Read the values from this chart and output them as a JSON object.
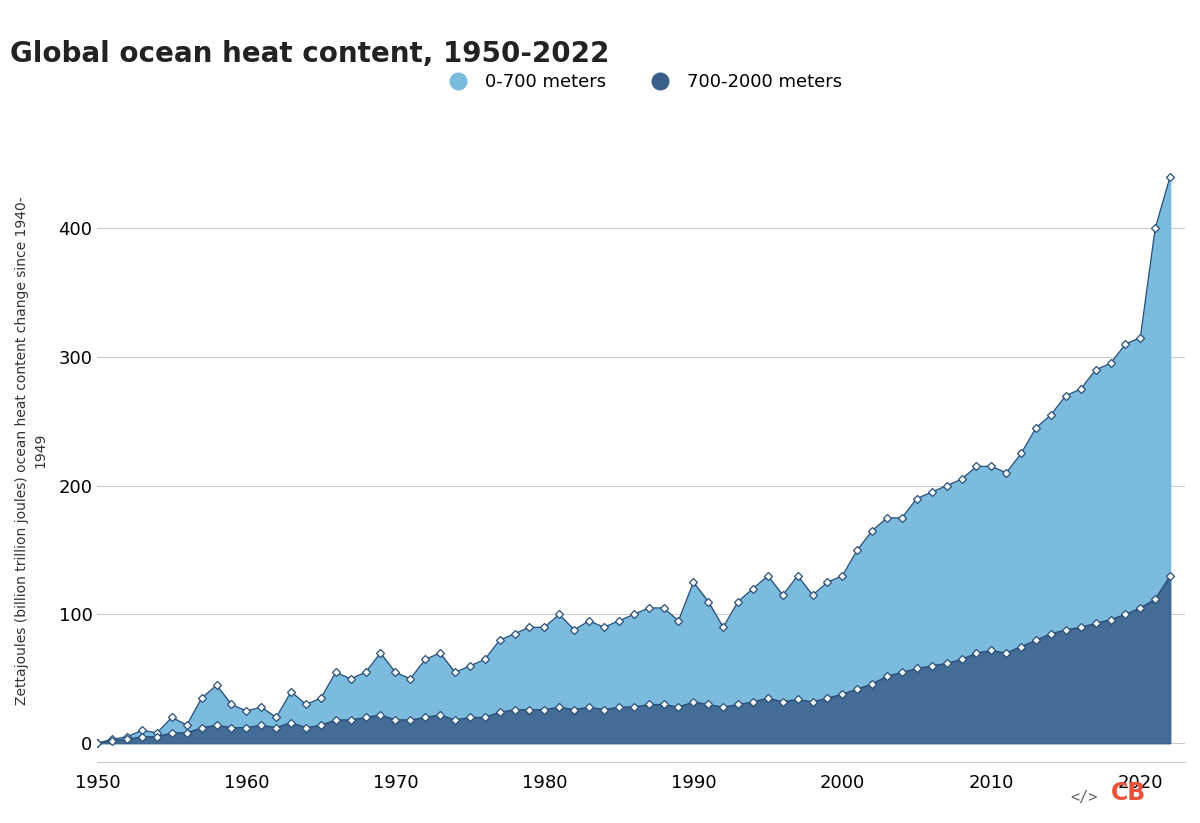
{
  "title": "Global ocean heat content, 1950-2022",
  "ylabel_line1": "Zettajoules (billion trillion joules) ocean heat content change since 1940-",
  "ylabel_line2": "1949",
  "background_color": "#ffffff",
  "grid_color": "#cccccc",
  "legend_entries": [
    "0-700 meters",
    "700-2000 meters"
  ],
  "color_shallow": "#7bbcde",
  "color_deep": "#3a5f8a",
  "years": [
    1950,
    1951,
    1952,
    1953,
    1954,
    1955,
    1956,
    1957,
    1958,
    1959,
    1960,
    1961,
    1962,
    1963,
    1964,
    1965,
    1966,
    1967,
    1968,
    1969,
    1970,
    1971,
    1972,
    1973,
    1974,
    1975,
    1976,
    1977,
    1978,
    1979,
    1980,
    1981,
    1982,
    1983,
    1984,
    1985,
    1986,
    1987,
    1988,
    1989,
    1990,
    1991,
    1992,
    1993,
    1994,
    1995,
    1996,
    1997,
    1998,
    1999,
    2000,
    2001,
    2002,
    2003,
    2004,
    2005,
    2006,
    2007,
    2008,
    2009,
    2010,
    2011,
    2012,
    2013,
    2014,
    2015,
    2016,
    2017,
    2018,
    2019,
    2020,
    2021,
    2022
  ],
  "shallow": [
    0,
    3,
    5,
    10,
    8,
    20,
    14,
    35,
    45,
    30,
    25,
    28,
    20,
    40,
    30,
    35,
    55,
    50,
    55,
    70,
    55,
    50,
    65,
    70,
    55,
    60,
    65,
    80,
    85,
    90,
    90,
    100,
    88,
    95,
    90,
    95,
    100,
    105,
    105,
    95,
    125,
    110,
    90,
    110,
    120,
    130,
    115,
    130,
    115,
    125,
    130,
    150,
    165,
    175,
    175,
    190,
    195,
    200,
    205,
    215,
    215,
    210,
    225,
    245,
    255,
    270,
    275,
    290,
    295,
    310,
    315,
    400,
    440
  ],
  "deep": [
    0,
    2,
    3,
    5,
    5,
    8,
    8,
    12,
    14,
    12,
    12,
    14,
    12,
    16,
    12,
    14,
    18,
    18,
    20,
    22,
    18,
    18,
    20,
    22,
    18,
    20,
    20,
    24,
    26,
    26,
    26,
    28,
    26,
    28,
    26,
    28,
    28,
    30,
    30,
    28,
    32,
    30,
    28,
    30,
    32,
    35,
    32,
    34,
    32,
    35,
    38,
    42,
    46,
    52,
    55,
    58,
    60,
    62,
    65,
    70,
    72,
    70,
    75,
    80,
    85,
    88,
    90,
    93,
    96,
    100,
    105,
    112,
    130
  ],
  "ylim": [
    -15,
    470
  ],
  "xlim": [
    1950,
    2023
  ],
  "xticks": [
    1950,
    1960,
    1970,
    1980,
    1990,
    2000,
    2010,
    2020
  ],
  "yticks": [
    0,
    100,
    200,
    300,
    400
  ],
  "title_fontsize": 20,
  "label_fontsize": 10,
  "tick_fontsize": 13,
  "legend_fontsize": 13
}
